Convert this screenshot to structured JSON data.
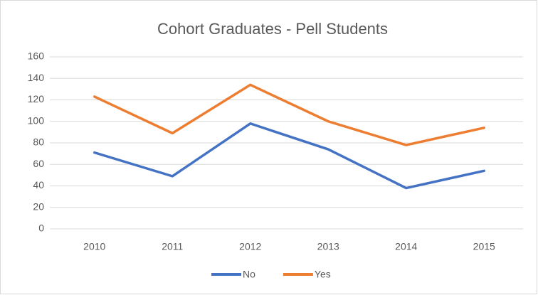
{
  "chart_data": {
    "type": "line",
    "title": "Cohort Graduates - Pell Students",
    "categories": [
      "2010",
      "2011",
      "2012",
      "2013",
      "2014",
      "2015"
    ],
    "series": [
      {
        "name": "No",
        "color": "#4472c4",
        "values": [
          71,
          49,
          98,
          74,
          38,
          54
        ]
      },
      {
        "name": "Yes",
        "color": "#ed7d31",
        "values": [
          123,
          89,
          134,
          100,
          78,
          94
        ]
      }
    ],
    "ylim": [
      0,
      160
    ],
    "yticks": [
      0,
      20,
      40,
      60,
      80,
      100,
      120,
      140,
      160
    ],
    "grid": true,
    "legend": "bottom"
  }
}
